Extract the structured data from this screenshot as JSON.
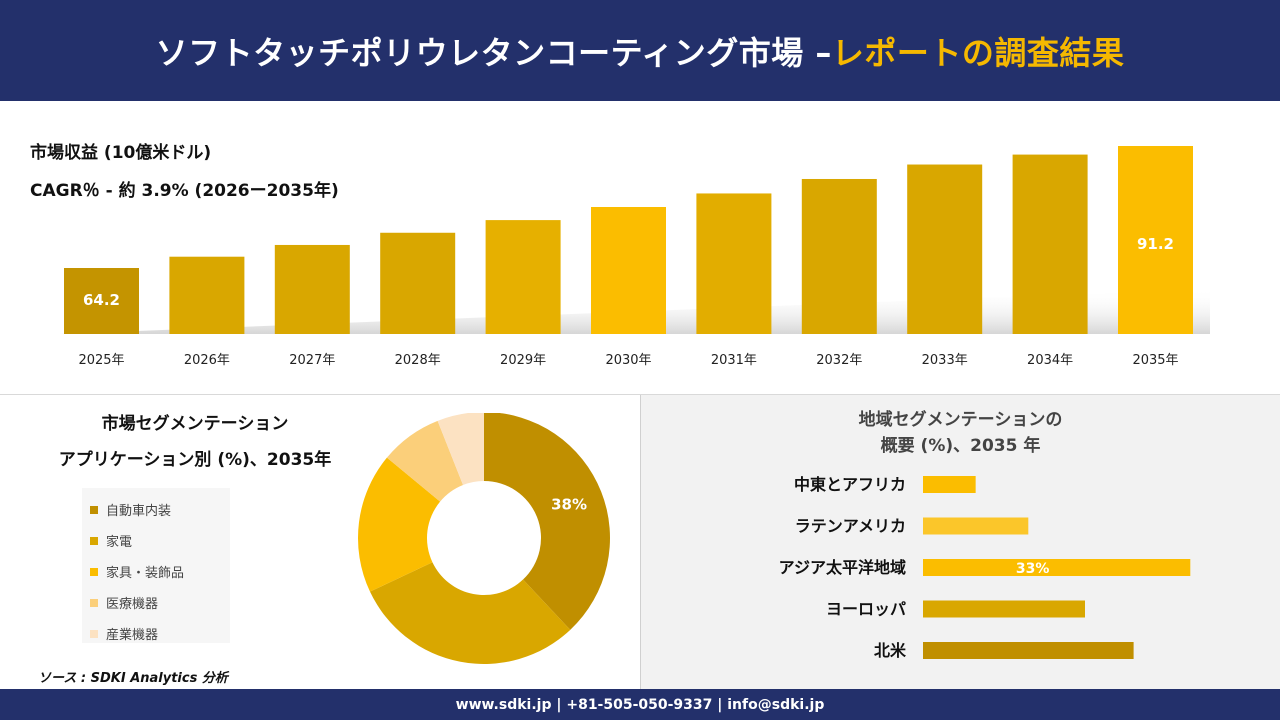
{
  "header": {
    "title_main": "ソフトタッチポリウレタンコーティング市場 –",
    "title_accent": "レポートの調査結果"
  },
  "revenue": {
    "title": "市場収益 (10億米ドル)",
    "cagr": "CAGR％ - 約 3.9% (2026ー2035年)"
  },
  "segmentation": {
    "title_line1": "市場セグメンテーション",
    "title_line2": "アプリケーション別 (%)、2035年"
  },
  "region": {
    "title_line1": "地域セグメンテーションの",
    "title_line2": "概要 (%)、2035 年"
  },
  "source": "ソース : SDKI Analytics 分析",
  "footer": {
    "contact": "www.sdki.jp | +81-505-050-9337 | info@sdki.jp"
  },
  "colors": {
    "navy": "#23306b",
    "accent": "#f5b800"
  },
  "chart_data": [
    {
      "type": "bar",
      "categories": [
        "2025年",
        "2026年",
        "2027年",
        "2028年",
        "2029年",
        "2030年",
        "2031年",
        "2032年",
        "2033年",
        "2034年",
        "2035年"
      ],
      "values": [
        64.2,
        66.7,
        69.3,
        72.0,
        74.8,
        77.7,
        80.7,
        83.9,
        87.1,
        89.3,
        91.2
      ],
      "data_labels": {
        "0": "64.2",
        "10": "91.2"
      },
      "colors": [
        "#c49400",
        "#d9a700",
        "#d9a700",
        "#d9a700",
        "#e6b000",
        "#fbbd00",
        "#e2ad00",
        "#d9a700",
        "#d9a700",
        "#d9a700",
        "#fbbd00"
      ],
      "ylim": [
        0,
        95
      ]
    },
    {
      "type": "pie",
      "labels": [
        "自動車内装",
        "家電",
        "家具・装飾品",
        "医療機器",
        "産業機器"
      ],
      "values": [
        38,
        30,
        18,
        8,
        6
      ],
      "colors": [
        "#c08f00",
        "#d9a700",
        "#fbbd00",
        "#fbcf7a",
        "#fce2c2"
      ],
      "data_labels": {
        "0": "38%"
      }
    },
    {
      "type": "bar",
      "orientation": "horizontal",
      "categories": [
        "中東とアフリカ",
        "ラテンアメリカ",
        "アジア太平洋地域",
        "ヨーロッパ",
        "北米"
      ],
      "values": [
        6.5,
        13,
        33,
        20,
        26
      ],
      "colors": [
        "#fbbd00",
        "#fbc62a",
        "#fbbd00",
        "#d9a700",
        "#c08f00"
      ],
      "data_labels": {
        "2": "33%"
      },
      "xlim": [
        0,
        40
      ]
    }
  ]
}
